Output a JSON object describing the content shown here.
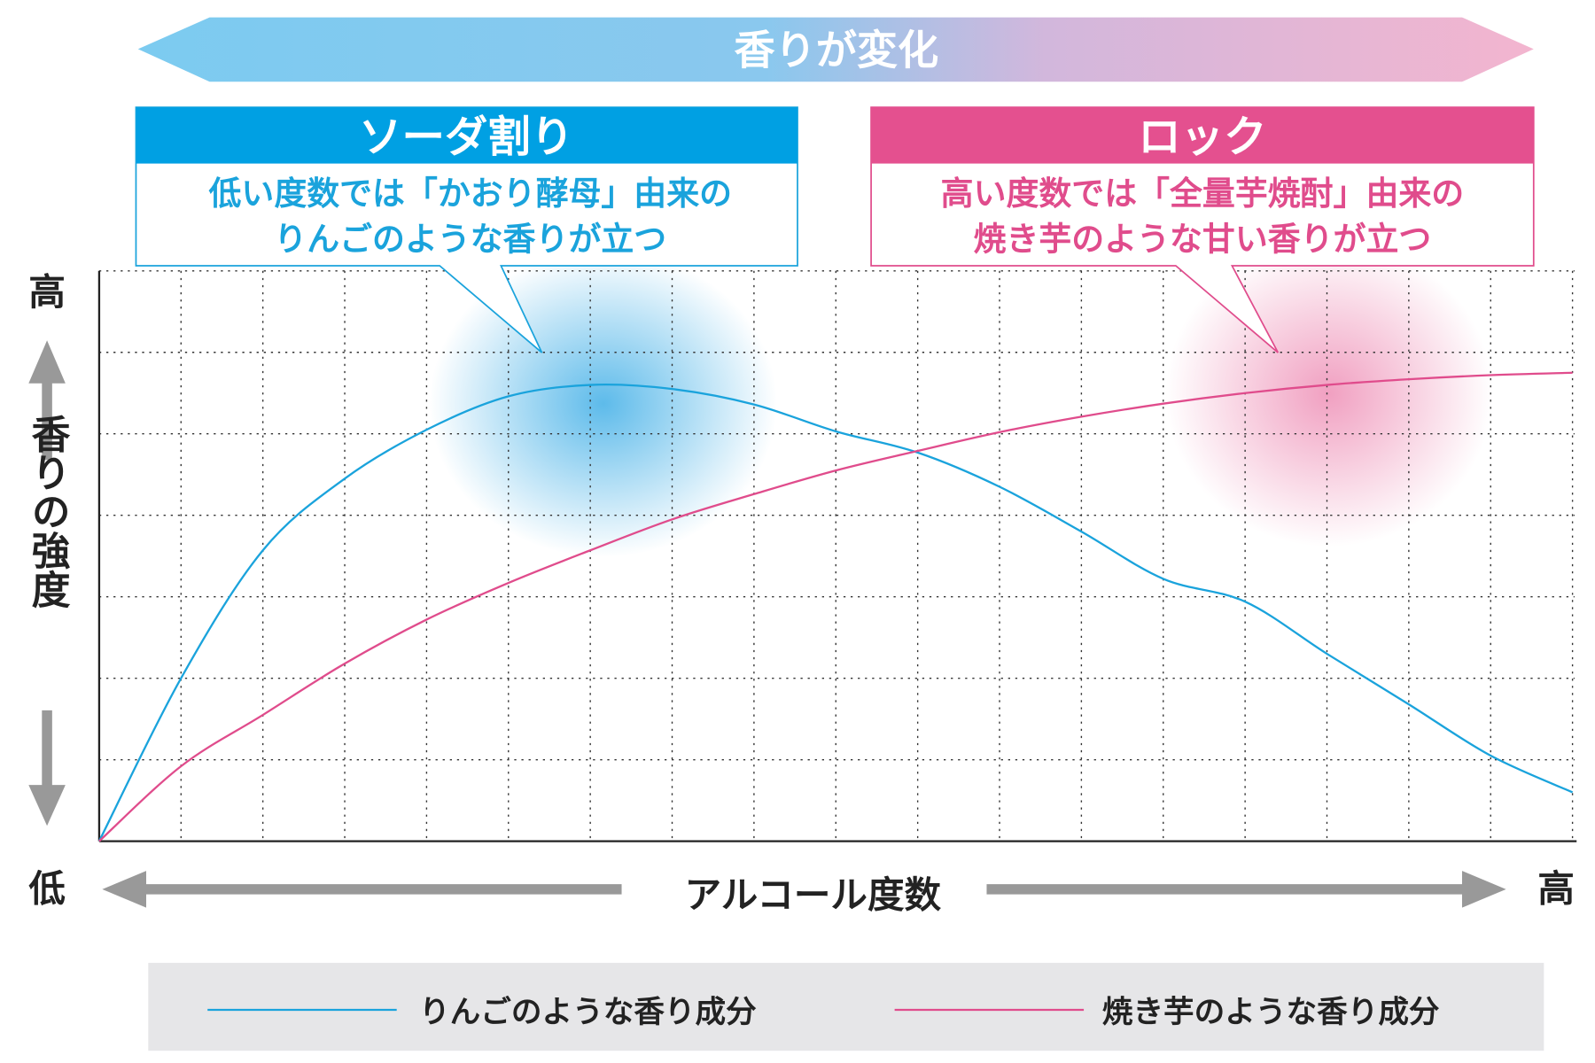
{
  "banner": {
    "label": "香りが変化",
    "colors": [
      "#7ccbf0",
      "#f3b5cf"
    ]
  },
  "callouts": [
    {
      "title": "ソーダ割り",
      "lines": [
        "低い度数では「かおり酵母」由来の",
        "りんごのような香りが立つ"
      ],
      "color": "#00a0e3"
    },
    {
      "title": "ロック",
      "lines": [
        "高い度数では「全量芋焼酎」由来の",
        "焼き芋のような甘い香りが立つ"
      ],
      "color": "#e4508f"
    }
  ],
  "chart_data": {
    "type": "line",
    "title": "",
    "xlabel": "アルコール度数",
    "ylabel": "香りの強度",
    "x_low_label": "低",
    "x_high_label": "高",
    "y_high_label": "高",
    "grid": true,
    "legend_position": "bottom",
    "x": [
      0,
      1,
      2,
      3,
      4,
      5,
      6,
      7,
      8,
      9,
      10,
      11,
      12,
      13,
      14,
      15,
      16,
      17,
      18
    ],
    "xlim": [
      0,
      18
    ],
    "ylim": [
      0,
      7
    ],
    "series": [
      {
        "name": "りんごのような香り成分",
        "color": "#1aa3dc",
        "values": [
          0,
          2.0,
          3.57,
          4.45,
          5.05,
          5.46,
          5.6,
          5.55,
          5.36,
          5.03,
          4.77,
          4.35,
          3.8,
          3.22,
          2.94,
          2.3,
          1.68,
          1.05,
          0.6
        ]
      },
      {
        "name": "焼き芋のような香り成分",
        "color": "#e04c8c",
        "values": [
          0,
          0.92,
          1.55,
          2.18,
          2.72,
          3.17,
          3.57,
          3.95,
          4.26,
          4.55,
          4.79,
          5.02,
          5.21,
          5.37,
          5.5,
          5.6,
          5.67,
          5.72,
          5.75
        ]
      }
    ]
  }
}
